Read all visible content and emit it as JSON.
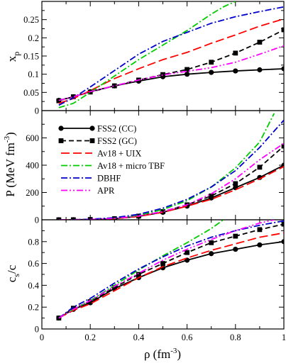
{
  "chart_data": [
    {
      "type": "line",
      "ylabel": "x_p",
      "ylabel_main": "x",
      "ylabel_sub": "p",
      "xlim": [
        0,
        1
      ],
      "ylim": [
        0,
        0.3
      ],
      "xticks": [
        0,
        0.2,
        0.4,
        0.6,
        0.8,
        1
      ],
      "yticks": [
        0,
        0.05,
        0.1,
        0.15,
        0.2,
        0.25
      ],
      "ytick_labels": [
        "0",
        "0.05",
        "0.1",
        "0.15",
        "0.2",
        "0.25"
      ],
      "grid": false,
      "series": [
        {
          "name": "FSS2 (CC)",
          "key": "fss2_cc",
          "x": [
            0.07,
            0.13,
            0.2,
            0.3,
            0.4,
            0.5,
            0.6,
            0.7,
            0.8,
            0.9,
            1.0
          ],
          "y": [
            0.028,
            0.038,
            0.052,
            0.068,
            0.081,
            0.093,
            0.1,
            0.105,
            0.109,
            0.112,
            0.115
          ]
        },
        {
          "name": "FSS2 (GC)",
          "key": "fss2_gc",
          "x": [
            0.07,
            0.13,
            0.2,
            0.3,
            0.4,
            0.5,
            0.6,
            0.7,
            0.8,
            0.9,
            1.0
          ],
          "y": [
            0.027,
            0.038,
            0.051,
            0.068,
            0.084,
            0.099,
            0.113,
            0.133,
            0.158,
            0.188,
            0.222
          ]
        },
        {
          "name": "Av18 + UIX",
          "key": "av18_uix",
          "x": [
            0.07,
            0.13,
            0.2,
            0.3,
            0.4,
            0.5,
            0.6,
            0.7,
            0.8,
            0.9,
            1.0
          ],
          "y": [
            0.02,
            0.033,
            0.055,
            0.088,
            0.115,
            0.14,
            0.16,
            0.185,
            0.208,
            0.232,
            0.252
          ]
        },
        {
          "name": "Av18 + micro TBF",
          "key": "av18_micro",
          "x": [
            0.07,
            0.13,
            0.2,
            0.3,
            0.4,
            0.5,
            0.6,
            0.7,
            0.75,
            0.8
          ],
          "y": [
            0.008,
            0.02,
            0.05,
            0.095,
            0.14,
            0.18,
            0.22,
            0.265,
            0.285,
            0.3
          ]
        },
        {
          "name": "DBHF",
          "key": "dbhf",
          "x": [
            0.07,
            0.13,
            0.2,
            0.3,
            0.4,
            0.5,
            0.6,
            0.7,
            0.8,
            0.9,
            1.0
          ],
          "y": [
            0.015,
            0.035,
            0.065,
            0.11,
            0.155,
            0.19,
            0.215,
            0.24,
            0.258,
            0.272,
            0.285
          ]
        },
        {
          "name": "APR",
          "key": "apr",
          "x": [
            0.07,
            0.13,
            0.2,
            0.3,
            0.4,
            0.5,
            0.6,
            0.7,
            0.8,
            0.9,
            1.0
          ],
          "y": [
            0.028,
            0.038,
            0.052,
            0.068,
            0.084,
            0.098,
            0.108,
            0.118,
            0.133,
            0.155,
            0.178
          ]
        }
      ]
    },
    {
      "type": "line",
      "ylabel": "P (MeV fm^-3)",
      "ylabel_main": "P (MeV fm",
      "ylabel_sup": "-3",
      "ylabel_end": ")",
      "xlim": [
        0,
        1
      ],
      "ylim": [
        0,
        800
      ],
      "xticks": [
        0,
        0.2,
        0.4,
        0.6,
        0.8,
        1
      ],
      "yticks": [
        0,
        200,
        400,
        600
      ],
      "ytick_labels": [
        "0",
        "200",
        "400",
        "600"
      ],
      "grid": false,
      "legend_position": "top-left",
      "series": [
        {
          "name": "FSS2 (CC)",
          "key": "fss2_cc",
          "x": [
            0.07,
            0.13,
            0.2,
            0.3,
            0.4,
            0.5,
            0.6,
            0.7,
            0.8,
            0.9,
            1.0
          ],
          "y": [
            0,
            0.5,
            2,
            8,
            25,
            55,
            100,
            160,
            235,
            310,
            400
          ]
        },
        {
          "name": "FSS2 (GC)",
          "key": "fss2_gc",
          "x": [
            0.07,
            0.13,
            0.2,
            0.3,
            0.4,
            0.5,
            0.6,
            0.7,
            0.8,
            0.9,
            1.0
          ],
          "y": [
            0,
            0.5,
            2,
            8,
            27,
            60,
            110,
            175,
            265,
            385,
            540
          ]
        },
        {
          "name": "Av18 + UIX",
          "key": "av18_uix",
          "x": [
            0.07,
            0.13,
            0.2,
            0.3,
            0.4,
            0.5,
            0.6,
            0.7,
            0.8,
            0.9,
            1.0
          ],
          "y": [
            0,
            0.5,
            2,
            8,
            25,
            55,
            100,
            150,
            220,
            300,
            390
          ]
        },
        {
          "name": "Av18 + micro TBF",
          "key": "av18_micro",
          "x": [
            0.07,
            0.13,
            0.2,
            0.3,
            0.4,
            0.5,
            0.6,
            0.7,
            0.8,
            0.9,
            0.96
          ],
          "y": [
            0,
            0.5,
            3,
            12,
            32,
            75,
            140,
            240,
            380,
            570,
            780
          ]
        },
        {
          "name": "DBHF",
          "key": "dbhf",
          "x": [
            0.07,
            0.13,
            0.2,
            0.3,
            0.4,
            0.5,
            0.6,
            0.7,
            0.8,
            0.9,
            1.0
          ],
          "y": [
            0,
            1,
            4,
            15,
            40,
            85,
            150,
            240,
            360,
            530,
            730
          ]
        },
        {
          "name": "APR",
          "key": "apr",
          "x": [
            0.07,
            0.13,
            0.2,
            0.3,
            0.4,
            0.5,
            0.6,
            0.7,
            0.8,
            0.9,
            1.0
          ],
          "y": [
            0,
            0.5,
            2,
            10,
            28,
            60,
            110,
            190,
            300,
            440,
            560
          ]
        }
      ]
    },
    {
      "type": "line",
      "ylabel": "c_s/c",
      "ylabel_main": "c",
      "ylabel_sub": "s",
      "ylabel_end": "/c",
      "xlabel": "ρ (fm^-3)",
      "xlabel_main": "ρ (fm",
      "xlabel_sup": "-3",
      "xlabel_end": ")",
      "xlim": [
        0,
        1
      ],
      "ylim": [
        0,
        1
      ],
      "xticks": [
        0,
        0.2,
        0.4,
        0.6,
        0.8,
        1
      ],
      "xtick_labels": [
        "0",
        "0.2",
        "0.4",
        "0.6",
        "0.8",
        "1"
      ],
      "yticks": [
        0,
        0.2,
        0.4,
        0.6,
        0.8
      ],
      "ytick_labels": [
        "0",
        "0.2",
        "0.4",
        "0.6",
        "0.8"
      ],
      "grid": false,
      "series": [
        {
          "name": "FSS2 (CC)",
          "key": "fss2_cc",
          "x": [
            0.07,
            0.13,
            0.2,
            0.3,
            0.4,
            0.5,
            0.6,
            0.7,
            0.8,
            0.9,
            1.0
          ],
          "y": [
            0.1,
            0.18,
            0.24,
            0.37,
            0.47,
            0.56,
            0.63,
            0.69,
            0.73,
            0.77,
            0.8
          ]
        },
        {
          "name": "FSS2 (GC)",
          "key": "fss2_gc",
          "x": [
            0.07,
            0.13,
            0.2,
            0.3,
            0.4,
            0.5,
            0.6,
            0.7,
            0.8,
            0.9,
            1.0
          ],
          "y": [
            0.1,
            0.19,
            0.25,
            0.38,
            0.5,
            0.6,
            0.7,
            0.79,
            0.85,
            0.91,
            0.96
          ]
        },
        {
          "name": "Av18 + UIX",
          "key": "av18_uix",
          "x": [
            0.07,
            0.13,
            0.2,
            0.3,
            0.4,
            0.5,
            0.6,
            0.7,
            0.8,
            0.9,
            1.0
          ],
          "y": [
            0.1,
            0.17,
            0.23,
            0.35,
            0.47,
            0.57,
            0.65,
            0.72,
            0.78,
            0.84,
            0.88
          ]
        },
        {
          "name": "Av18 + micro TBF",
          "key": "av18_micro",
          "x": [
            0.07,
            0.13,
            0.2,
            0.3,
            0.4,
            0.5,
            0.6,
            0.7,
            0.75
          ],
          "y": [
            0.1,
            0.18,
            0.26,
            0.4,
            0.54,
            0.67,
            0.79,
            0.92,
            1.0
          ]
        },
        {
          "name": "DBHF",
          "key": "dbhf",
          "x": [
            0.07,
            0.13,
            0.2,
            0.3,
            0.4,
            0.5,
            0.6,
            0.7,
            0.8,
            0.9,
            1.0
          ],
          "y": [
            0.1,
            0.2,
            0.28,
            0.42,
            0.55,
            0.66,
            0.76,
            0.84,
            0.9,
            0.95,
            0.99
          ]
        },
        {
          "name": "APR",
          "key": "apr",
          "x": [
            0.07,
            0.13,
            0.2,
            0.3,
            0.4,
            0.5,
            0.6,
            0.7,
            0.8,
            0.9,
            0.96
          ],
          "y": [
            0.1,
            0.18,
            0.26,
            0.39,
            0.51,
            0.63,
            0.73,
            0.82,
            0.9,
            0.97,
            1.0
          ]
        }
      ]
    }
  ],
  "series_styles": {
    "fss2_cc": {
      "color": "#000000",
      "dash": "",
      "marker": "circle"
    },
    "fss2_gc": {
      "color": "#000000",
      "dash": "7,4",
      "marker": "square"
    },
    "av18_uix": {
      "color": "#ff0000",
      "dash": "12,5",
      "marker": "none"
    },
    "av18_micro": {
      "color": "#00cc00",
      "dash": "9,3,2,3",
      "marker": "none"
    },
    "dbhf": {
      "color": "#0000cc",
      "dash": "9,3,2,3",
      "marker": "none"
    },
    "apr": {
      "color": "#ff00ff",
      "dash": "9,3,2,3,2,3",
      "marker": "none"
    }
  },
  "legend": {
    "entries": [
      "FSS2 (CC)",
      "FSS2 (GC)",
      "Av18 + UIX",
      "Av18 + micro TBF",
      "DBHF",
      "APR"
    ]
  }
}
